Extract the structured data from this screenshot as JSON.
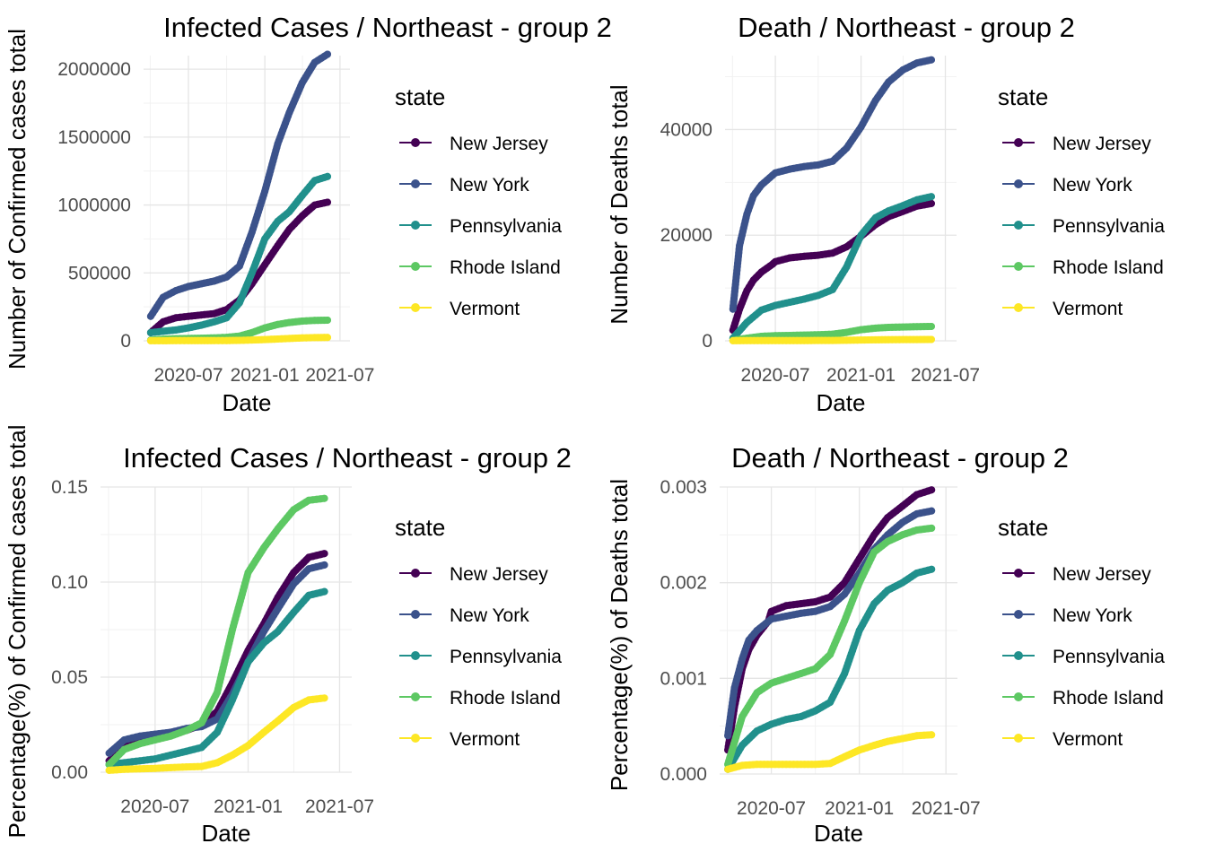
{
  "chart_data": [
    {
      "type": "scatter",
      "title": "Infected Cases / Northeast - group 2",
      "xlabel": "Date",
      "ylabel": "Number of Confirmed cases total",
      "x_ticks": [
        "2020-07",
        "2021-01",
        "2021-07"
      ],
      "x_range": [
        "2020-03-15",
        "2021-07-25"
      ],
      "y_ticks": [
        "0",
        "500000",
        "1000000",
        "1500000",
        "2000000"
      ],
      "ylim": [
        0,
        2100000
      ],
      "legend": {
        "title": "state",
        "position": "right"
      },
      "series": [
        {
          "name": "New Jersey",
          "color": "#440154",
          "x": [
            "2020-04-01",
            "2020-05-01",
            "2020-06-01",
            "2020-07-01",
            "2020-08-01",
            "2020-09-01",
            "2020-10-01",
            "2020-11-01",
            "2020-12-01",
            "2021-01-01",
            "2021-02-01",
            "2021-03-01",
            "2021-04-01",
            "2021-05-01",
            "2021-06-01"
          ],
          "values": [
            60000,
            140000,
            170000,
            180000,
            190000,
            200000,
            230000,
            300000,
            420000,
            560000,
            700000,
            820000,
            920000,
            1000000,
            1020000
          ]
        },
        {
          "name": "New York",
          "color": "#3b528b",
          "x": [
            "2020-04-01",
            "2020-05-01",
            "2020-06-01",
            "2020-07-01",
            "2020-08-01",
            "2020-09-01",
            "2020-10-01",
            "2020-11-01",
            "2020-12-01",
            "2021-01-01",
            "2021-02-01",
            "2021-03-01",
            "2021-04-01",
            "2021-05-01",
            "2021-06-01"
          ],
          "values": [
            180000,
            320000,
            370000,
            400000,
            420000,
            440000,
            470000,
            550000,
            800000,
            1100000,
            1450000,
            1680000,
            1900000,
            2050000,
            2110000
          ]
        },
        {
          "name": "Pennsylvania",
          "color": "#21908c",
          "x": [
            "2020-04-01",
            "2020-05-01",
            "2020-06-01",
            "2020-07-01",
            "2020-08-01",
            "2020-09-01",
            "2020-10-01",
            "2020-11-01",
            "2020-12-01",
            "2021-01-01",
            "2021-02-01",
            "2021-03-01",
            "2021-04-01",
            "2021-05-01",
            "2021-06-01"
          ],
          "values": [
            60000,
            70000,
            80000,
            95000,
            115000,
            140000,
            170000,
            280000,
            500000,
            750000,
            880000,
            950000,
            1070000,
            1180000,
            1210000
          ]
        },
        {
          "name": "Rhode Island",
          "color": "#5dc863",
          "x": [
            "2020-04-01",
            "2020-05-01",
            "2020-06-01",
            "2020-07-01",
            "2020-08-01",
            "2020-09-01",
            "2020-10-01",
            "2020-11-01",
            "2020-12-01",
            "2021-01-01",
            "2021-02-01",
            "2021-03-01",
            "2021-04-01",
            "2021-05-01",
            "2021-06-01"
          ],
          "values": [
            5000,
            12000,
            16000,
            17000,
            19000,
            22000,
            26000,
            35000,
            60000,
            95000,
            120000,
            135000,
            145000,
            150000,
            152000
          ]
        },
        {
          "name": "Vermont",
          "color": "#fde725",
          "x": [
            "2020-04-01",
            "2020-05-01",
            "2020-06-01",
            "2020-07-01",
            "2020-08-01",
            "2020-09-01",
            "2020-10-01",
            "2020-11-01",
            "2020-12-01",
            "2021-01-01",
            "2021-02-01",
            "2021-03-01",
            "2021-04-01",
            "2021-05-01",
            "2021-06-01"
          ],
          "values": [
            600,
            900,
            1100,
            1300,
            1500,
            1700,
            1900,
            3000,
            6000,
            9000,
            13000,
            17000,
            21000,
            23500,
            24500
          ]
        }
      ]
    },
    {
      "type": "scatter",
      "title": "Death / Northeast - group 2",
      "xlabel": "Date",
      "ylabel": "Number of Deaths total",
      "x_ticks": [
        "2020-07",
        "2021-01",
        "2021-07"
      ],
      "x_range": [
        "2020-03-15",
        "2021-07-25"
      ],
      "y_ticks": [
        "0",
        "20000",
        "40000"
      ],
      "ylim": [
        0,
        54000
      ],
      "legend": {
        "title": "state",
        "position": "right"
      },
      "series": [
        {
          "name": "New Jersey",
          "color": "#440154",
          "x": [
            "2020-04-01",
            "2020-04-15",
            "2020-05-01",
            "2020-05-15",
            "2020-06-01",
            "2020-06-25",
            "2020-07-01",
            "2020-08-01",
            "2020-09-01",
            "2020-10-01",
            "2020-11-01",
            "2020-12-01",
            "2021-01-01",
            "2021-02-01",
            "2021-03-01",
            "2021-04-01",
            "2021-05-01",
            "2021-06-01"
          ],
          "values": [
            2000,
            6000,
            9500,
            11500,
            13000,
            14500,
            15000,
            15700,
            16000,
            16200,
            16600,
            17800,
            19800,
            22000,
            23500,
            24500,
            25500,
            26000
          ]
        },
        {
          "name": "New York",
          "color": "#3b528b",
          "x": [
            "2020-04-01",
            "2020-04-15",
            "2020-05-01",
            "2020-05-15",
            "2020-06-01",
            "2020-07-01",
            "2020-08-01",
            "2020-09-01",
            "2020-10-01",
            "2020-11-01",
            "2020-12-01",
            "2021-01-01",
            "2021-02-01",
            "2021-03-01",
            "2021-04-01",
            "2021-05-01",
            "2021-06-01"
          ],
          "values": [
            6000,
            18000,
            24000,
            27500,
            29500,
            31800,
            32500,
            33000,
            33300,
            34000,
            36500,
            40500,
            45500,
            49000,
            51300,
            52600,
            53200
          ]
        },
        {
          "name": "Pennsylvania",
          "color": "#21908c",
          "x": [
            "2020-04-01",
            "2020-05-01",
            "2020-06-01",
            "2020-07-01",
            "2020-08-01",
            "2020-09-01",
            "2020-10-01",
            "2020-11-01",
            "2020-12-01",
            "2021-01-01",
            "2021-02-01",
            "2021-03-01",
            "2021-04-01",
            "2021-05-01",
            "2021-06-01"
          ],
          "values": [
            500,
            3500,
            5800,
            6700,
            7300,
            7900,
            8600,
            9700,
            14000,
            20000,
            23300,
            24600,
            25600,
            26700,
            27300
          ]
        },
        {
          "name": "Rhode Island",
          "color": "#5dc863",
          "x": [
            "2020-04-01",
            "2020-05-01",
            "2020-06-01",
            "2020-07-01",
            "2020-08-01",
            "2020-09-01",
            "2020-10-01",
            "2020-11-01",
            "2020-12-01",
            "2021-01-01",
            "2021-02-01",
            "2021-03-01",
            "2021-04-01",
            "2021-05-01",
            "2021-06-01"
          ],
          "values": [
            100,
            500,
            850,
            960,
            1020,
            1080,
            1150,
            1250,
            1600,
            2100,
            2400,
            2550,
            2620,
            2680,
            2720
          ]
        },
        {
          "name": "Vermont",
          "color": "#fde725",
          "x": [
            "2020-04-01",
            "2020-05-01",
            "2020-06-01",
            "2020-07-01",
            "2020-08-01",
            "2020-09-01",
            "2020-10-01",
            "2020-11-01",
            "2020-12-01",
            "2021-01-01",
            "2021-02-01",
            "2021-03-01",
            "2021-04-01",
            "2021-05-01",
            "2021-06-01"
          ],
          "values": [
            20,
            50,
            55,
            57,
            58,
            58,
            60,
            70,
            110,
            150,
            190,
            210,
            230,
            245,
            255
          ]
        }
      ]
    },
    {
      "type": "scatter",
      "title": "Infected Cases / Northeast - group 2",
      "xlabel": "Date",
      "ylabel": "Percentage(%) of Confirmed cases total",
      "x_ticks": [
        "2020-07",
        "2021-01",
        "2021-07"
      ],
      "x_range": [
        "2020-03-15",
        "2021-07-25"
      ],
      "y_ticks": [
        "0.00",
        "0.05",
        "0.10",
        "0.15"
      ],
      "ylim": [
        0,
        0.15
      ],
      "legend": {
        "title": "state",
        "position": "right"
      },
      "series": [
        {
          "name": "New Jersey",
          "color": "#440154",
          "x": [
            "2020-04-01",
            "2020-05-01",
            "2020-06-01",
            "2020-07-01",
            "2020-08-01",
            "2020-09-01",
            "2020-10-01",
            "2020-11-01",
            "2020-12-01",
            "2021-01-01",
            "2021-02-01",
            "2021-03-01",
            "2021-04-01",
            "2021-05-01",
            "2021-06-01"
          ],
          "values": [
            0.006,
            0.014,
            0.018,
            0.019,
            0.021,
            0.022,
            0.025,
            0.032,
            0.047,
            0.064,
            0.078,
            0.092,
            0.105,
            0.113,
            0.115
          ]
        },
        {
          "name": "New York",
          "color": "#3b528b",
          "x": [
            "2020-04-01",
            "2020-05-01",
            "2020-06-01",
            "2020-07-01",
            "2020-08-01",
            "2020-09-01",
            "2020-10-01",
            "2020-11-01",
            "2020-12-01",
            "2021-01-01",
            "2021-02-01",
            "2021-03-01",
            "2021-04-01",
            "2021-05-01",
            "2021-06-01"
          ],
          "values": [
            0.01,
            0.017,
            0.019,
            0.02,
            0.021,
            0.023,
            0.024,
            0.028,
            0.041,
            0.058,
            0.074,
            0.086,
            0.099,
            0.107,
            0.109
          ]
        },
        {
          "name": "Pennsylvania",
          "color": "#21908c",
          "x": [
            "2020-04-01",
            "2020-05-01",
            "2020-06-01",
            "2020-07-01",
            "2020-08-01",
            "2020-09-01",
            "2020-10-01",
            "2020-11-01",
            "2020-12-01",
            "2021-01-01",
            "2021-02-01",
            "2021-03-01",
            "2021-04-01",
            "2021-05-01",
            "2021-06-01"
          ],
          "values": [
            0.004,
            0.005,
            0.006,
            0.007,
            0.009,
            0.011,
            0.013,
            0.021,
            0.038,
            0.058,
            0.068,
            0.074,
            0.084,
            0.093,
            0.095
          ]
        },
        {
          "name": "Rhode Island",
          "color": "#5dc863",
          "x": [
            "2020-04-01",
            "2020-05-01",
            "2020-06-01",
            "2020-07-01",
            "2020-08-01",
            "2020-09-01",
            "2020-10-01",
            "2020-11-01",
            "2020-12-01",
            "2021-01-01",
            "2021-02-01",
            "2021-03-01",
            "2021-04-01",
            "2021-05-01",
            "2021-06-01"
          ],
          "values": [
            0.004,
            0.012,
            0.015,
            0.017,
            0.019,
            0.022,
            0.026,
            0.042,
            0.075,
            0.105,
            0.118,
            0.128,
            0.138,
            0.143,
            0.144
          ]
        },
        {
          "name": "Vermont",
          "color": "#fde725",
          "x": [
            "2020-04-01",
            "2020-05-01",
            "2020-06-01",
            "2020-07-01",
            "2020-08-01",
            "2020-09-01",
            "2020-10-01",
            "2020-11-01",
            "2020-12-01",
            "2021-01-01",
            "2021-02-01",
            "2021-03-01",
            "2021-04-01",
            "2021-05-01",
            "2021-06-01"
          ],
          "values": [
            0.001,
            0.0015,
            0.0018,
            0.002,
            0.0024,
            0.0028,
            0.003,
            0.005,
            0.009,
            0.014,
            0.021,
            0.027,
            0.034,
            0.038,
            0.039
          ]
        }
      ]
    },
    {
      "type": "scatter",
      "title": "Death / Northeast - group 2",
      "xlabel": "Date",
      "ylabel": "Percentage(%) of Deaths total",
      "x_ticks": [
        "2020-07",
        "2021-01",
        "2021-07"
      ],
      "x_range": [
        "2020-03-15",
        "2021-07-25"
      ],
      "y_ticks": [
        "0.000",
        "0.001",
        "0.002",
        "0.003"
      ],
      "ylim": [
        0,
        0.003
      ],
      "legend": {
        "title": "state",
        "position": "right"
      },
      "series": [
        {
          "name": "New Jersey",
          "color": "#440154",
          "x": [
            "2020-04-01",
            "2020-04-15",
            "2020-05-01",
            "2020-05-15",
            "2020-06-01",
            "2020-06-25",
            "2020-07-01",
            "2020-08-01",
            "2020-09-01",
            "2020-10-01",
            "2020-11-01",
            "2020-12-01",
            "2021-01-01",
            "2021-02-01",
            "2021-03-01",
            "2021-04-01",
            "2021-05-01",
            "2021-06-01"
          ],
          "values": [
            0.00025,
            0.0007,
            0.0011,
            0.0013,
            0.00145,
            0.0016,
            0.0017,
            0.00176,
            0.00178,
            0.0018,
            0.00185,
            0.002,
            0.00225,
            0.0025,
            0.00268,
            0.0028,
            0.00292,
            0.00297
          ]
        },
        {
          "name": "New York",
          "color": "#3b528b",
          "x": [
            "2020-04-01",
            "2020-04-15",
            "2020-05-01",
            "2020-05-15",
            "2020-06-01",
            "2020-07-01",
            "2020-08-01",
            "2020-09-01",
            "2020-10-01",
            "2020-11-01",
            "2020-12-01",
            "2021-01-01",
            "2021-02-01",
            "2021-03-01",
            "2021-04-01",
            "2021-05-01",
            "2021-06-01"
          ],
          "values": [
            0.0004,
            0.0009,
            0.0012,
            0.0014,
            0.0015,
            0.00162,
            0.00165,
            0.00168,
            0.0017,
            0.00175,
            0.00188,
            0.0021,
            0.00235,
            0.0025,
            0.00263,
            0.00272,
            0.00275
          ]
        },
        {
          "name": "Pennsylvania",
          "color": "#21908c",
          "x": [
            "2020-04-01",
            "2020-05-01",
            "2020-06-01",
            "2020-07-01",
            "2020-08-01",
            "2020-09-01",
            "2020-10-01",
            "2020-11-01",
            "2020-12-01",
            "2021-01-01",
            "2021-02-01",
            "2021-03-01",
            "2021-04-01",
            "2021-05-01",
            "2021-06-01"
          ],
          "values": [
            5e-05,
            0.0003,
            0.00045,
            0.00052,
            0.00057,
            0.0006,
            0.00066,
            0.00075,
            0.00105,
            0.0015,
            0.00178,
            0.00192,
            0.002,
            0.0021,
            0.00214
          ]
        },
        {
          "name": "Rhode Island",
          "color": "#5dc863",
          "x": [
            "2020-04-01",
            "2020-05-01",
            "2020-06-01",
            "2020-07-01",
            "2020-08-01",
            "2020-09-01",
            "2020-10-01",
            "2020-11-01",
            "2020-12-01",
            "2021-01-01",
            "2021-02-01",
            "2021-03-01",
            "2021-04-01",
            "2021-05-01",
            "2021-06-01"
          ],
          "values": [
            0.0001,
            0.0006,
            0.00085,
            0.00095,
            0.001,
            0.00105,
            0.0011,
            0.00125,
            0.0016,
            0.002,
            0.00232,
            0.00243,
            0.0025,
            0.00255,
            0.00257
          ]
        },
        {
          "name": "Vermont",
          "color": "#fde725",
          "x": [
            "2020-04-01",
            "2020-05-01",
            "2020-06-01",
            "2020-07-01",
            "2020-08-01",
            "2020-09-01",
            "2020-10-01",
            "2020-11-01",
            "2020-12-01",
            "2021-01-01",
            "2021-02-01",
            "2021-03-01",
            "2021-04-01",
            "2021-05-01",
            "2021-06-01"
          ],
          "values": [
            5e-05,
            9e-05,
            0.0001,
            0.0001,
            0.0001,
            0.0001,
            0.0001,
            0.00011,
            0.00018,
            0.00025,
            0.0003,
            0.00034,
            0.00037,
            0.0004,
            0.00041
          ]
        }
      ]
    }
  ]
}
